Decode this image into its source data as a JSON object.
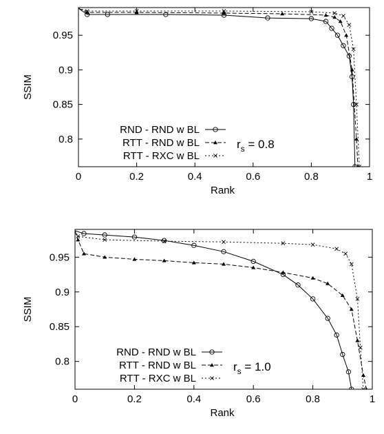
{
  "chart_data": [
    {
      "type": "line",
      "xlabel": "Rank",
      "ylabel": "SSIM",
      "xlim": [
        0,
        1
      ],
      "ylim": [
        0.76,
        0.99
      ],
      "xticks": [
        "0",
        "0.2",
        "0.4",
        "0.6",
        "0.8",
        "1"
      ],
      "yticks": [
        "0.8",
        "0.85",
        "0.9",
        "0.95"
      ],
      "annotation": {
        "prefix": "r",
        "sub": "s",
        "suffix": " = 0.8"
      },
      "legend_position": "bottom-left",
      "series": [
        {
          "name": "RND - RND w BL",
          "marker": "circle",
          "dash": "solid",
          "x": [
            0.0,
            0.03,
            0.1,
            0.3,
            0.5,
            0.65,
            0.8,
            0.85,
            0.87,
            0.89,
            0.91,
            0.93,
            0.94,
            0.945,
            0.95
          ],
          "y": [
            0.989,
            0.98,
            0.98,
            0.98,
            0.979,
            0.975,
            0.974,
            0.97,
            0.96,
            0.95,
            0.935,
            0.92,
            0.89,
            0.85,
            0.76
          ]
        },
        {
          "name": "RTT - RND w BL",
          "marker": "triangle",
          "dash": "dash",
          "x": [
            0.0,
            0.03,
            0.2,
            0.5,
            0.7,
            0.85,
            0.88,
            0.9,
            0.92,
            0.94,
            0.955,
            0.96
          ],
          "y": [
            0.989,
            0.983,
            0.983,
            0.982,
            0.981,
            0.979,
            0.976,
            0.97,
            0.95,
            0.9,
            0.8,
            0.76
          ]
        },
        {
          "name": "RTT - RXC w BL",
          "marker": "cross",
          "dash": "dot",
          "x": [
            0.0,
            0.03,
            0.2,
            0.5,
            0.8,
            0.88,
            0.91,
            0.93,
            0.945,
            0.955,
            0.965
          ],
          "y": [
            0.989,
            0.985,
            0.985,
            0.985,
            0.984,
            0.982,
            0.978,
            0.965,
            0.93,
            0.85,
            0.76
          ]
        }
      ]
    },
    {
      "type": "line",
      "xlabel": "Rank",
      "ylabel": "SSIM",
      "xlim": [
        0,
        1
      ],
      "ylim": [
        0.76,
        0.99
      ],
      "xticks": [
        "0",
        "0.2",
        "0.4",
        "0.6",
        "0.8",
        "1"
      ],
      "yticks": [
        "0.8",
        "0.85",
        "0.9",
        "0.95"
      ],
      "annotation": {
        "prefix": "r",
        "sub": "s",
        "suffix": " = 1.0"
      },
      "legend_position": "bottom-left",
      "series": [
        {
          "name": "RND - RND w BL",
          "marker": "circle",
          "dash": "solid",
          "x": [
            0.0,
            0.03,
            0.1,
            0.2,
            0.3,
            0.4,
            0.5,
            0.6,
            0.7,
            0.75,
            0.8,
            0.85,
            0.88,
            0.9,
            0.92,
            0.93
          ],
          "y": [
            0.988,
            0.984,
            0.982,
            0.979,
            0.974,
            0.967,
            0.958,
            0.944,
            0.925,
            0.91,
            0.89,
            0.862,
            0.838,
            0.81,
            0.785,
            0.76
          ]
        },
        {
          "name": "RTT - RND w BL",
          "marker": "triangle",
          "dash": "dash",
          "x": [
            0.0,
            0.01,
            0.03,
            0.1,
            0.2,
            0.3,
            0.4,
            0.5,
            0.6,
            0.7,
            0.8,
            0.85,
            0.9,
            0.93,
            0.95,
            0.97,
            0.98
          ],
          "y": [
            0.988,
            0.975,
            0.955,
            0.95,
            0.947,
            0.945,
            0.942,
            0.94,
            0.935,
            0.928,
            0.92,
            0.912,
            0.895,
            0.875,
            0.83,
            0.78,
            0.76
          ]
        },
        {
          "name": "RTT - RXC w BL",
          "marker": "cross",
          "dash": "dot",
          "x": [
            0.0,
            0.01,
            0.1,
            0.3,
            0.5,
            0.7,
            0.8,
            0.88,
            0.91,
            0.93,
            0.95,
            0.96,
            0.97
          ],
          "y": [
            0.988,
            0.98,
            0.975,
            0.973,
            0.972,
            0.97,
            0.968,
            0.962,
            0.955,
            0.94,
            0.89,
            0.82,
            0.76
          ]
        }
      ]
    }
  ]
}
